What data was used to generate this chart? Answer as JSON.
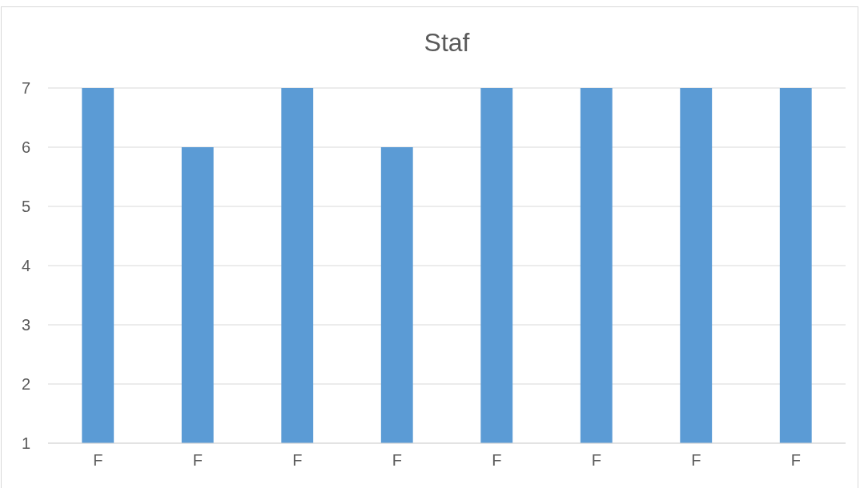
{
  "chart_data": {
    "type": "bar",
    "title": "Staf",
    "categories": [
      "F",
      "F",
      "F",
      "F",
      "F",
      "F",
      "F",
      "F"
    ],
    "values": [
      7,
      6,
      7,
      6,
      7,
      7,
      7,
      7
    ],
    "color": "#5b9bd5",
    "ylim": [
      1,
      7
    ],
    "yticks": [
      1,
      2,
      3,
      4,
      5,
      6,
      7
    ],
    "grid": "y"
  }
}
